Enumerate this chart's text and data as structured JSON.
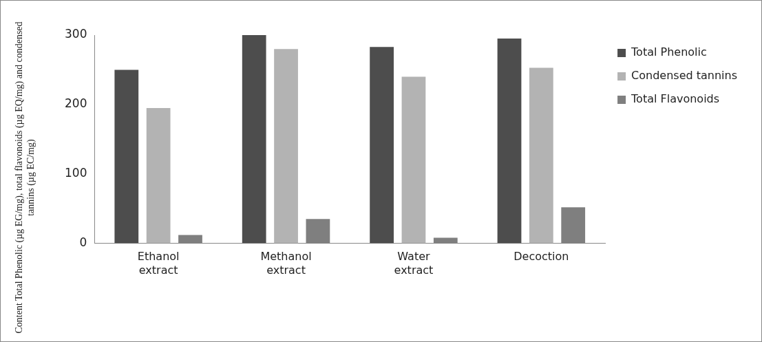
{
  "chart_data": {
    "type": "bar",
    "ylabel": "Content Total Phenolic (µg EG/mg), total flavonoids (µg EQ/mg) and condensed tannins (µg EC/mg)",
    "categories": [
      "Ethanol extract",
      "Methanol extract",
      "Water extract",
      "Decoction"
    ],
    "series": [
      {
        "name": "Total Phenolic",
        "color": "#4d4d4d",
        "values": [
          250,
          300,
          283,
          295
        ]
      },
      {
        "name": "Condensed tannins",
        "color": "#b3b3b3",
        "values": [
          195,
          280,
          240,
          253
        ]
      },
      {
        "name": "Total Flavonoids",
        "color": "#7f7f7f",
        "values": [
          12,
          35,
          8,
          52
        ]
      }
    ],
    "ylim": [
      0,
      300
    ],
    "yticks": [
      0,
      100,
      200,
      300
    ],
    "grid": false,
    "legend": "top right"
  }
}
